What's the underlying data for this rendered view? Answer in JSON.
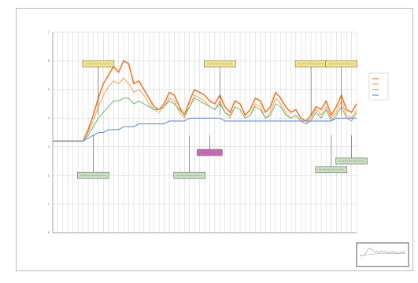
{
  "chart_data": {
    "type": "line",
    "title": "",
    "subtitle": "",
    "xlabel": "",
    "ylabel": "",
    "ylim": [
      0,
      7
    ],
    "yticks": [
      0,
      1,
      2,
      3,
      4,
      5,
      6,
      7
    ],
    "grid": true,
    "legend_position": "right",
    "x_count": 61,
    "series": [
      {
        "name": "",
        "color": "#f07828",
        "values": [
          3.2,
          3.2,
          3.2,
          3.2,
          3.2,
          3.2,
          3.2,
          3.6,
          4.1,
          4.7,
          5.2,
          5.5,
          5.8,
          5.6,
          6.0,
          5.9,
          5.2,
          5.3,
          5.0,
          4.7,
          4.4,
          4.3,
          4.5,
          4.9,
          4.8,
          4.4,
          4.1,
          4.6,
          5.0,
          4.9,
          4.8,
          4.6,
          4.5,
          4.8,
          4.4,
          4.2,
          4.6,
          4.5,
          4.1,
          4.3,
          4.7,
          4.6,
          4.2,
          4.4,
          4.9,
          4.7,
          4.4,
          4.2,
          4.3,
          4.0,
          3.9,
          4.1,
          4.4,
          4.3,
          4.6,
          4.1,
          4.4,
          4.8,
          4.3,
          4.2,
          4.5
        ]
      },
      {
        "name": "",
        "color": "#f3a66a",
        "values": [
          3.2,
          3.2,
          3.2,
          3.2,
          3.2,
          3.2,
          3.2,
          3.5,
          3.9,
          4.4,
          4.8,
          5.1,
          5.3,
          5.2,
          5.4,
          5.2,
          4.9,
          5.0,
          4.8,
          4.5,
          4.3,
          4.2,
          4.4,
          4.7,
          4.6,
          4.2,
          4.0,
          4.4,
          4.8,
          4.7,
          4.6,
          4.4,
          4.3,
          4.6,
          4.2,
          4.0,
          4.4,
          4.3,
          4.0,
          4.1,
          4.5,
          4.4,
          4.0,
          4.2,
          4.7,
          4.5,
          4.2,
          4.0,
          4.1,
          3.9,
          3.8,
          4.0,
          4.3,
          4.1,
          4.4,
          4.0,
          4.2,
          4.6,
          4.1,
          4.0,
          4.3
        ]
      },
      {
        "name": "",
        "color": "#7dbb7d",
        "values": [
          3.2,
          3.2,
          3.2,
          3.2,
          3.2,
          3.2,
          3.2,
          3.4,
          3.7,
          4.0,
          4.2,
          4.4,
          4.6,
          4.6,
          4.7,
          4.7,
          4.5,
          4.6,
          4.5,
          4.4,
          4.3,
          4.3,
          4.4,
          4.6,
          4.5,
          4.3,
          4.1,
          4.4,
          4.7,
          4.6,
          4.5,
          4.4,
          4.3,
          4.5,
          4.2,
          4.1,
          4.4,
          4.3,
          4.0,
          4.1,
          4.4,
          4.3,
          4.0,
          4.1,
          4.5,
          4.4,
          4.1,
          4.0,
          4.1,
          3.9,
          3.8,
          3.9,
          4.2,
          4.0,
          4.3,
          3.9,
          4.1,
          4.4,
          4.0,
          3.9,
          4.2
        ]
      },
      {
        "name": "",
        "color": "#6d8bd6",
        "values": [
          3.2,
          3.2,
          3.2,
          3.2,
          3.2,
          3.2,
          3.2,
          3.3,
          3.4,
          3.5,
          3.5,
          3.6,
          3.6,
          3.6,
          3.7,
          3.7,
          3.7,
          3.8,
          3.8,
          3.8,
          3.8,
          3.8,
          3.8,
          3.9,
          3.9,
          3.9,
          3.9,
          4.0,
          4.0,
          4.0,
          4.0,
          4.0,
          4.0,
          4.0,
          3.9,
          3.9,
          3.9,
          3.9,
          3.9,
          3.9,
          3.9,
          3.9,
          3.9,
          3.9,
          3.9,
          3.9,
          3.9,
          3.9,
          3.9,
          3.9,
          3.9,
          3.9,
          3.9,
          3.9,
          3.9,
          3.9,
          4.0,
          4.0,
          4.0,
          4.0,
          4.0
        ]
      }
    ],
    "callouts": [
      {
        "i": 9,
        "value": 5.9,
        "color": "#f5e48a"
      },
      {
        "i": 33,
        "value": 5.9,
        "color": "#f5e48a"
      },
      {
        "i": 51,
        "value": 5.9,
        "color": "#f5e48a"
      },
      {
        "i": 57,
        "value": 5.9,
        "color": "#f5e48a"
      },
      {
        "i": 8,
        "value": 2.0,
        "color": "#c9dfc0"
      },
      {
        "i": 27,
        "value": 2.0,
        "color": "#c9dfc0"
      },
      {
        "i": 55,
        "value": 2.2,
        "color": "#c9dfc0"
      },
      {
        "i": 59,
        "value": 2.5,
        "color": "#c9dfc0"
      },
      {
        "i": 31,
        "value": 2.8,
        "color": "#c96ab3"
      }
    ]
  }
}
